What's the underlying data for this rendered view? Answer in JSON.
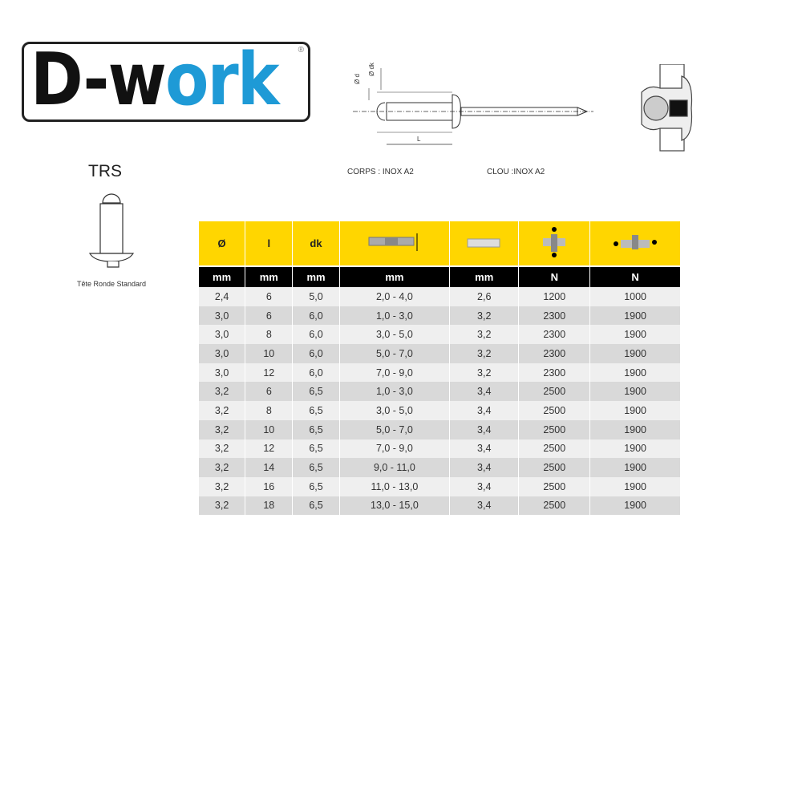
{
  "logo": {
    "text_dark": "D-w",
    "text_blue": "ork",
    "registered": "®",
    "blue": "#1e9ad6"
  },
  "diagram": {
    "label_d": "Ø d",
    "label_dk": "Ø dk",
    "label_L": "L"
  },
  "materials": {
    "body": "CORPS : INOX A2",
    "mandrel": "CLOU :INOX A2"
  },
  "rivet_type": {
    "code": "TRS",
    "caption": "Tête Ronde Standard"
  },
  "table": {
    "headers": [
      "Ø",
      "l",
      "dk",
      "grip-range-icon",
      "drill-hole-icon",
      "shear-force-icon",
      "tensile-force-icon"
    ],
    "units": [
      "mm",
      "mm",
      "mm",
      "mm",
      "mm",
      "N",
      "N"
    ],
    "rows": [
      [
        "2,4",
        "6",
        "5,0",
        "2,0 - 4,0",
        "2,6",
        "1200",
        "1000"
      ],
      [
        "3,0",
        "6",
        "6,0",
        "1,0 - 3,0",
        "3,2",
        "2300",
        "1900"
      ],
      [
        "3,0",
        "8",
        "6,0",
        "3,0 - 5,0",
        "3,2",
        "2300",
        "1900"
      ],
      [
        "3,0",
        "10",
        "6,0",
        "5,0 - 7,0",
        "3,2",
        "2300",
        "1900"
      ],
      [
        "3,0",
        "12",
        "6,0",
        "7,0 - 9,0",
        "3,2",
        "2300",
        "1900"
      ],
      [
        "3,2",
        "6",
        "6,5",
        "1,0 - 3,0",
        "3,4",
        "2500",
        "1900"
      ],
      [
        "3,2",
        "8",
        "6,5",
        "3,0 - 5,0",
        "3,4",
        "2500",
        "1900"
      ],
      [
        "3,2",
        "10",
        "6,5",
        "5,0 - 7,0",
        "3,4",
        "2500",
        "1900"
      ],
      [
        "3,2",
        "12",
        "6,5",
        "7,0 - 9,0",
        "3,4",
        "2500",
        "1900"
      ],
      [
        "3,2",
        "14",
        "6,5",
        "9,0 - 11,0",
        "3,4",
        "2500",
        "1900"
      ],
      [
        "3,2",
        "16",
        "6,5",
        "11,0 - 13,0",
        "3,4",
        "2500",
        "1900"
      ],
      [
        "3,2",
        "18",
        "6,5",
        "13,0 - 15,0",
        "3,4",
        "2500",
        "1900"
      ]
    ],
    "header_color": "#ffd600"
  }
}
